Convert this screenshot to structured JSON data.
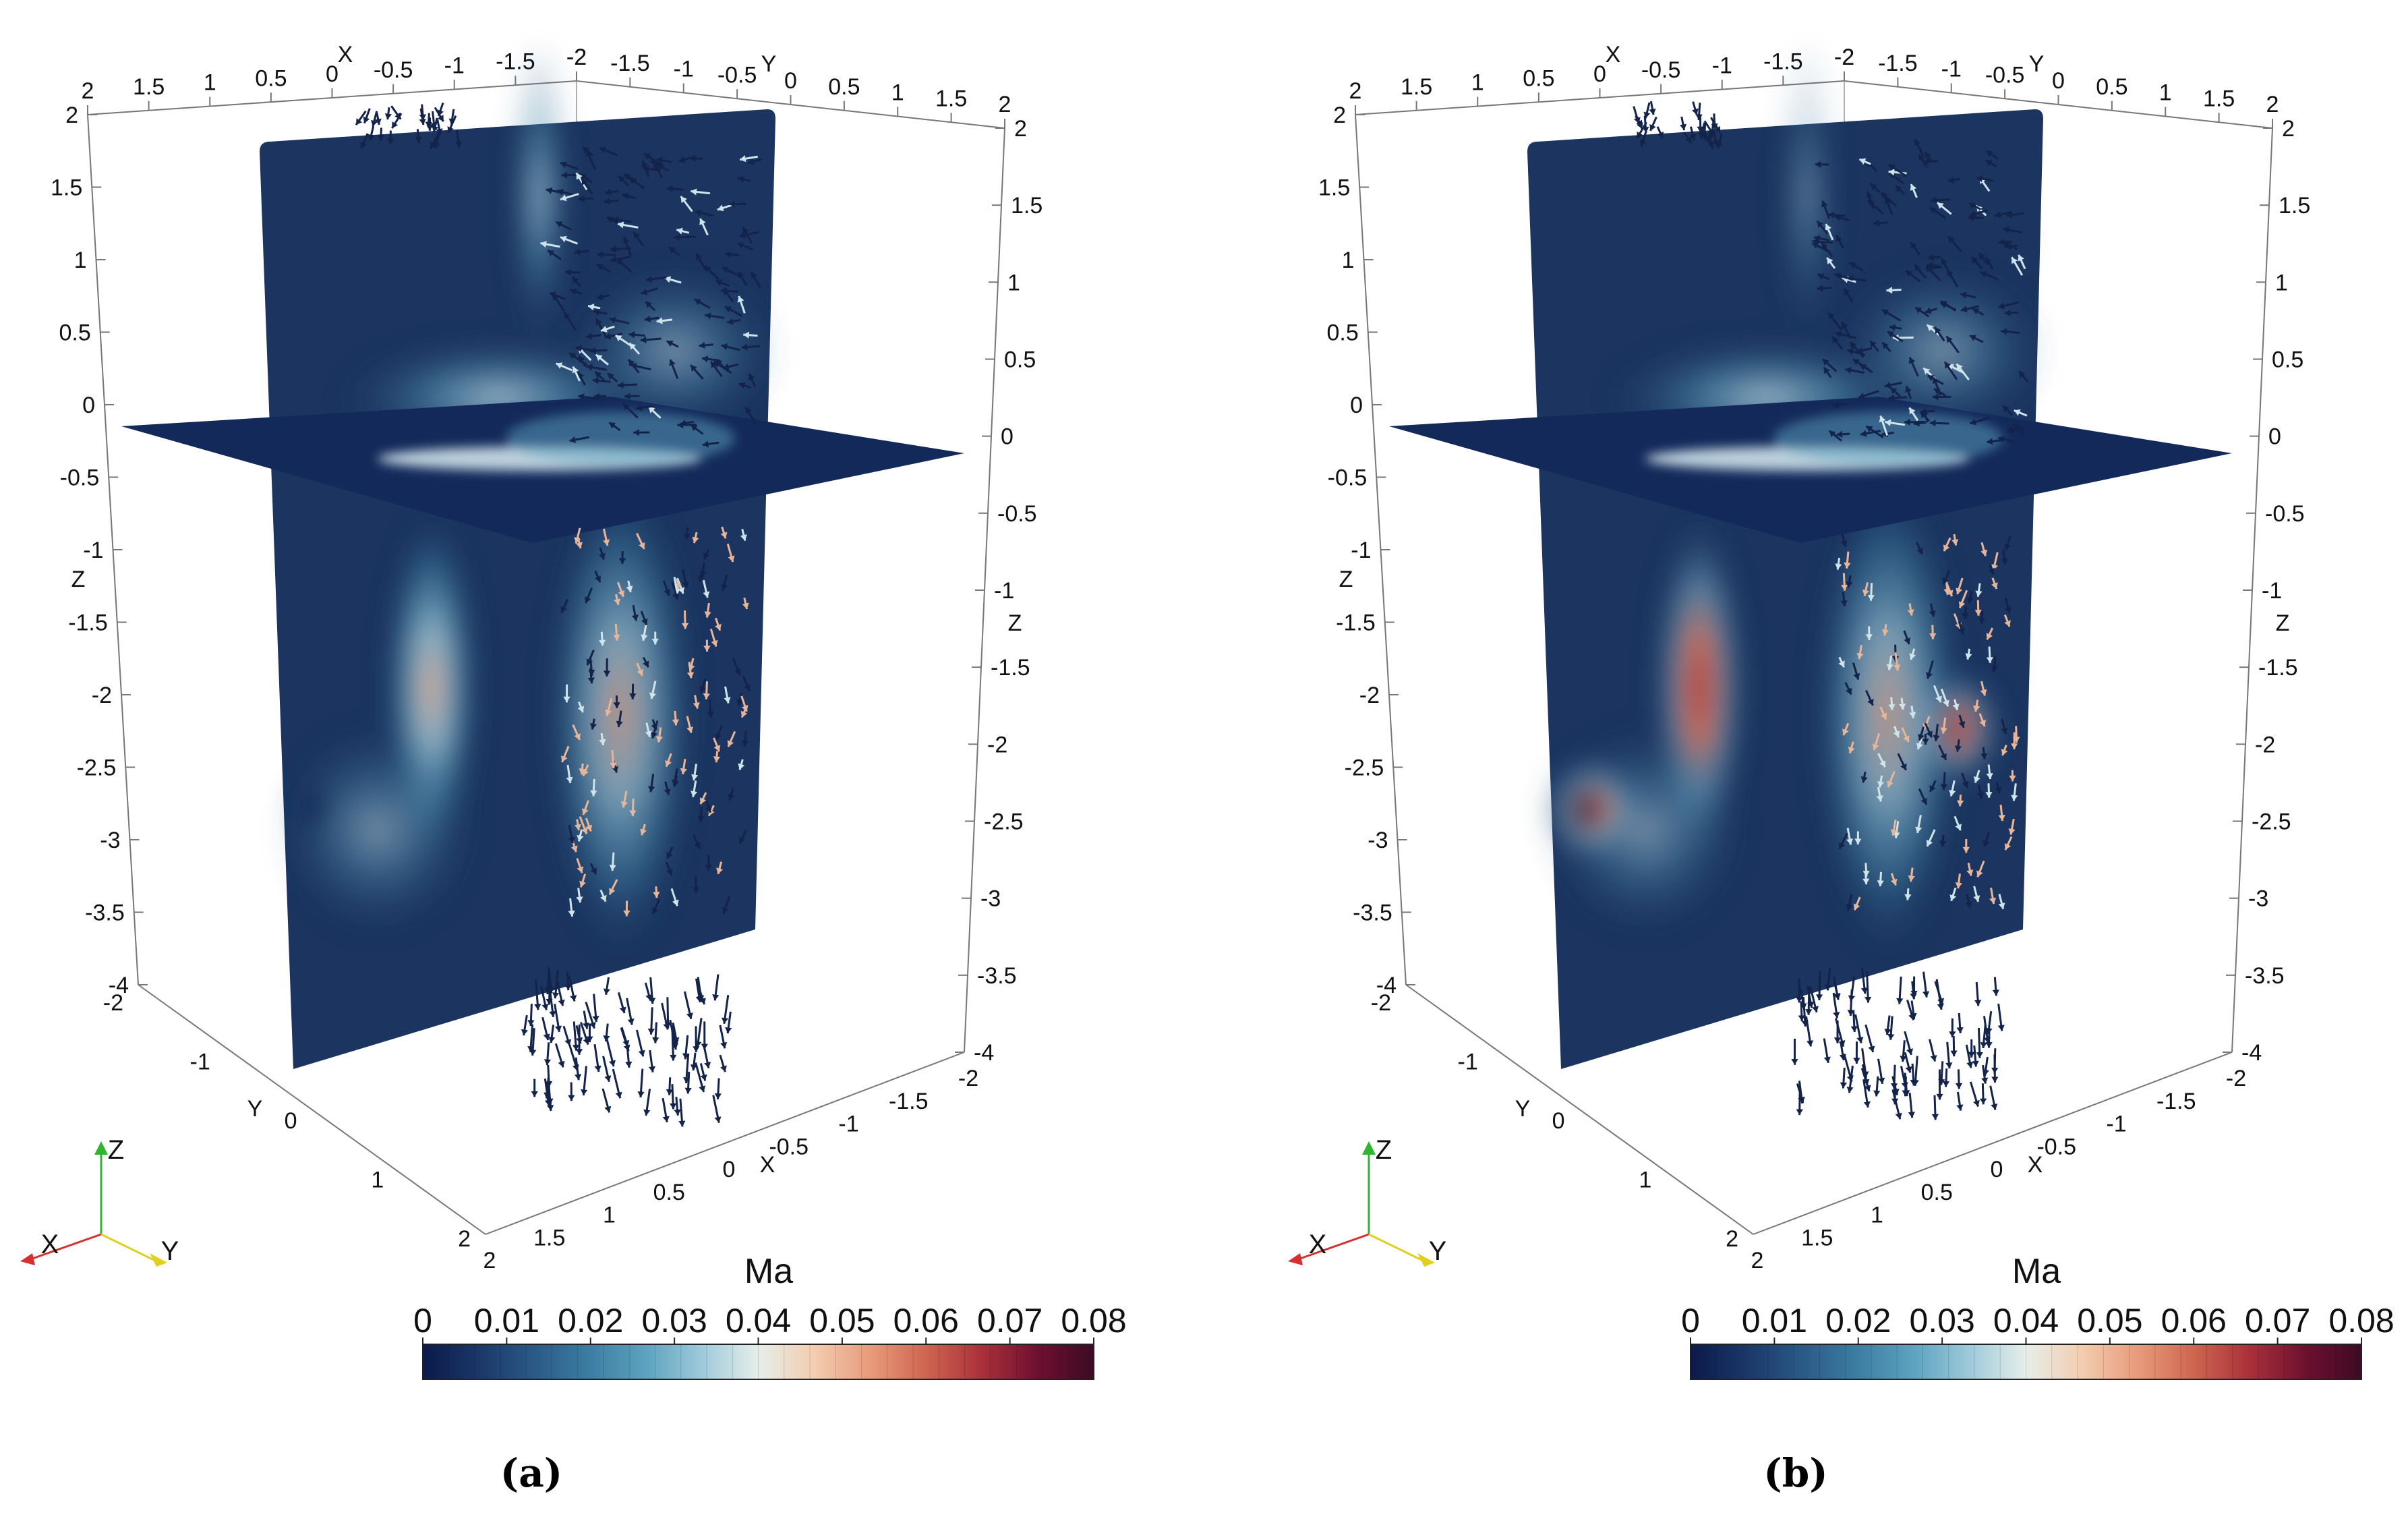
{
  "panels": [
    {
      "caption": "(a)",
      "colorbar": {
        "title": "Ma",
        "ticks": [
          "0",
          "0.01",
          "0.02",
          "0.03",
          "0.04",
          "0.05",
          "0.06",
          "0.07",
          "0.08"
        ],
        "range": [
          0,
          0.08
        ]
      },
      "axes": {
        "x_top": [
          "2",
          "1.5",
          "1",
          "0.5",
          "0",
          "-0.5",
          "-1",
          "-1.5",
          "-2"
        ],
        "y_top": [
          "-2",
          "-1.5",
          "-1",
          "-0.5",
          "0",
          "0.5",
          "1",
          "1.5",
          "2"
        ],
        "z_left": [
          "2",
          "1.5",
          "1",
          "0.5",
          "0",
          "-0.5",
          "-1",
          "-1.5",
          "-2",
          "-2.5",
          "-3",
          "-3.5",
          "-4"
        ],
        "z_right": [
          "2",
          "1.5",
          "1",
          "0.5",
          "0",
          "-0.5",
          "-1",
          "-1.5",
          "-2",
          "-2.5",
          "-3",
          "-3.5",
          "-4"
        ],
        "y_bottom": [
          "-2",
          "-1",
          "0",
          "1",
          "2"
        ],
        "x_bottom": [
          "2",
          "1.5",
          "1",
          "0.5",
          "0",
          "-0.5",
          "-1",
          "-1.5",
          "-2"
        ],
        "names": {
          "x": "X",
          "y": "Y",
          "z": "Z"
        }
      },
      "triad": {
        "x": "X",
        "y": "Y",
        "z": "Z"
      }
    },
    {
      "caption": "(b)",
      "colorbar": {
        "title": "Ma",
        "ticks": [
          "0",
          "0.01",
          "0.02",
          "0.03",
          "0.04",
          "0.05",
          "0.06",
          "0.07",
          "0.08"
        ],
        "range": [
          0,
          0.08
        ]
      },
      "axes": {
        "x_top": [
          "2",
          "1.5",
          "1",
          "0.5",
          "0",
          "-0.5",
          "-1",
          "-1.5",
          "-2"
        ],
        "y_top": [
          "-2",
          "-1.5",
          "-1",
          "-0.5",
          "0",
          "0.5",
          "1",
          "1.5",
          "2"
        ],
        "z_left": [
          "2",
          "1.5",
          "1",
          "0.5",
          "0",
          "-0.5",
          "-1",
          "-1.5",
          "-2",
          "-2.5",
          "-3",
          "-3.5",
          "-4"
        ],
        "z_right": [
          "2",
          "1.5",
          "1",
          "0.5",
          "0",
          "-0.5",
          "-1",
          "-1.5",
          "-2",
          "-2.5",
          "-3",
          "-3.5",
          "-4"
        ],
        "y_bottom": [
          "-2",
          "-1",
          "0",
          "1",
          "2"
        ],
        "x_bottom": [
          "2",
          "1.5",
          "1",
          "0.5",
          "0",
          "-0.5",
          "-1",
          "-1.5",
          "-2"
        ],
        "names": {
          "x": "X",
          "y": "Y",
          "z": "Z"
        }
      },
      "triad": {
        "x": "X",
        "y": "Y",
        "z": "Z"
      }
    }
  ],
  "colormap": [
    "#0b1a4a",
    "#1a3768",
    "#2a5a86",
    "#3c7ea3",
    "#5ea3bf",
    "#9fcadb",
    "#e6eeea",
    "#f3cdb0",
    "#e79b7b",
    "#cf6550",
    "#a9303a",
    "#6e1030",
    "#3c0b24"
  ]
}
